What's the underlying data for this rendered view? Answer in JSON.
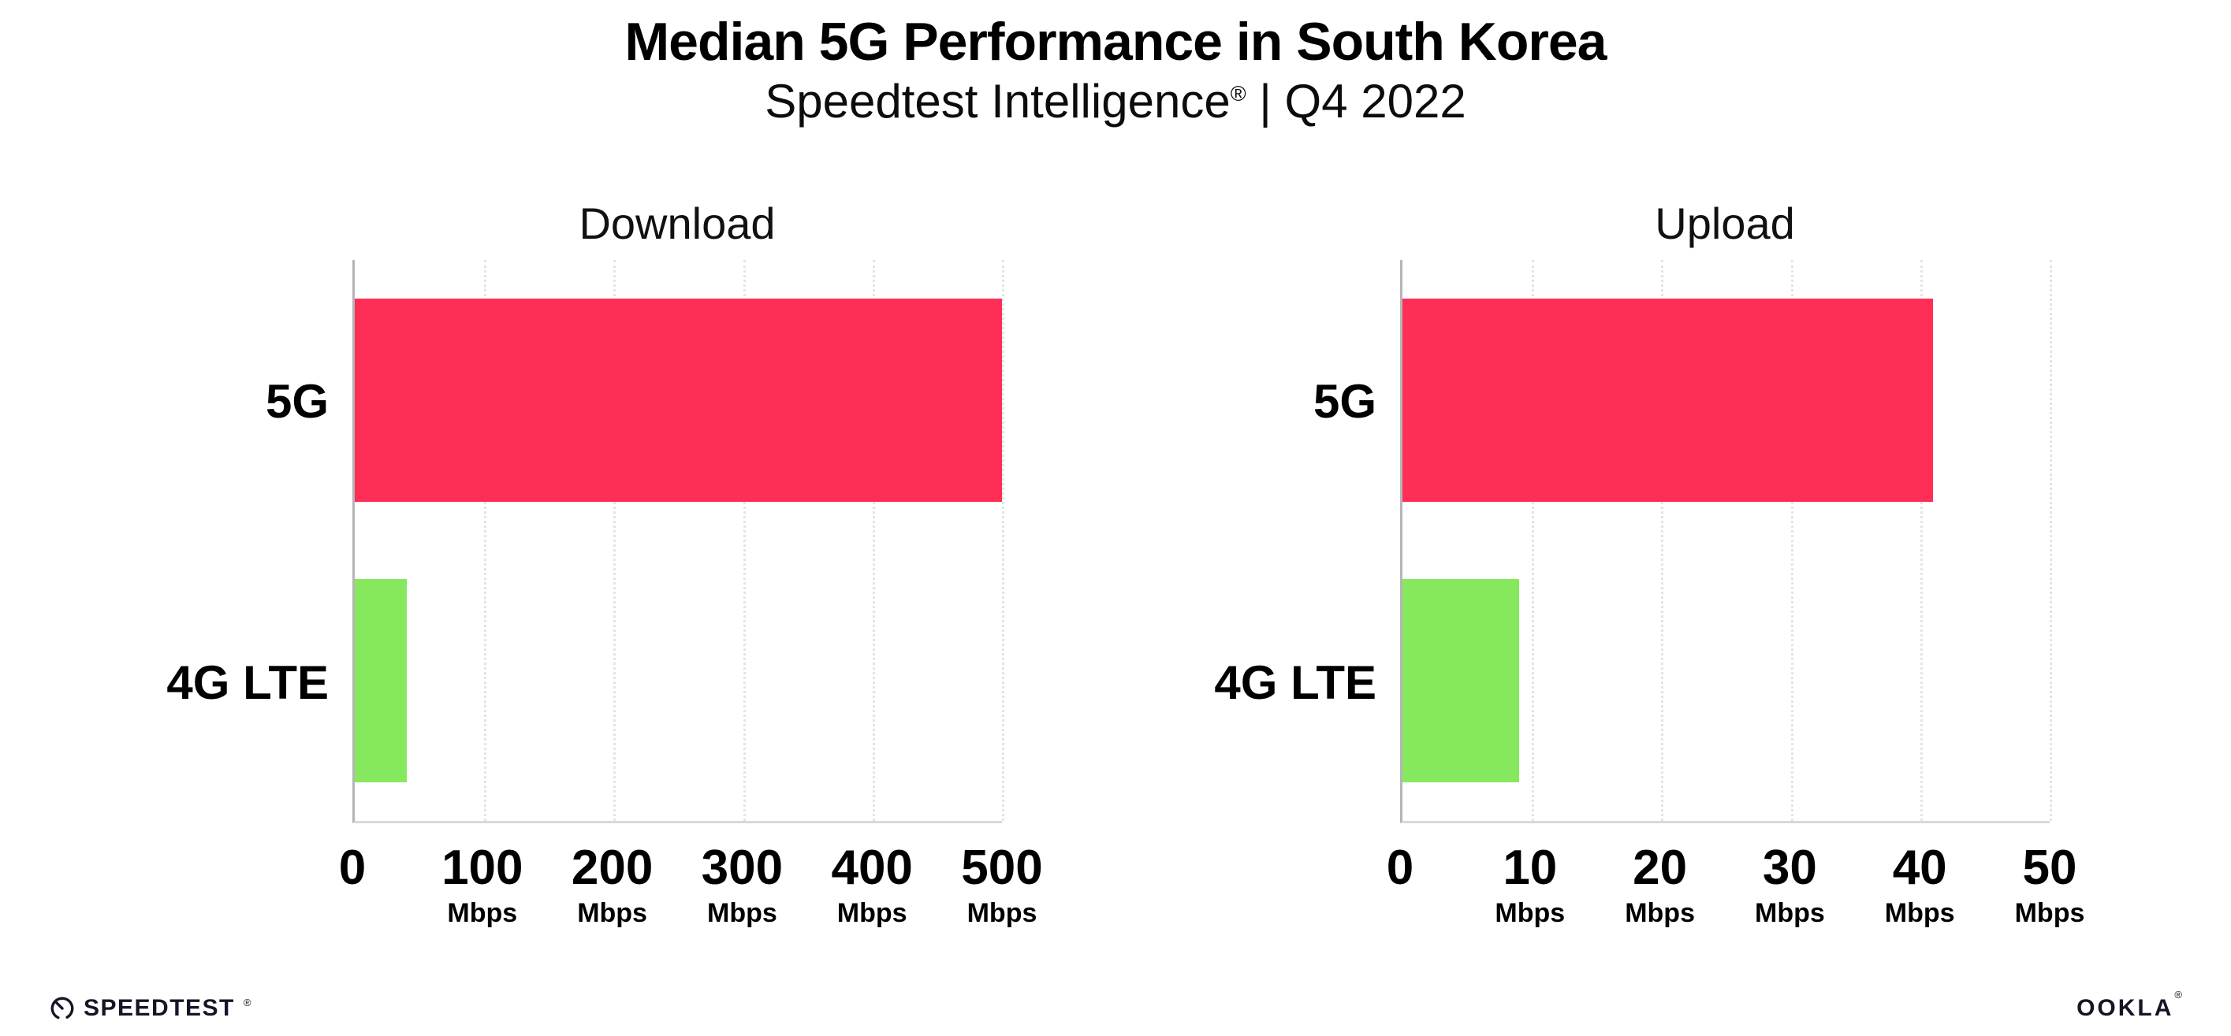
{
  "header": {
    "title": "Median 5G Performance in South Korea",
    "subtitle_brand": "Speedtest Intelligence",
    "subtitle_mark": "®",
    "subtitle_rest": "| Q4 2022"
  },
  "chart_data": [
    {
      "type": "bar",
      "orientation": "horizontal",
      "title": "Download",
      "categories": [
        "5G",
        "4G LTE"
      ],
      "values": [
        500,
        40
      ],
      "unit": "Mbps",
      "xlabel": "",
      "ylabel": "",
      "xlim": [
        0,
        500
      ],
      "xticks": [
        0,
        100,
        200,
        300,
        400,
        500
      ],
      "bar_colors": [
        "#FF2E56",
        "#85E85D"
      ],
      "grid": "dotted-vertical",
      "legend": "none"
    },
    {
      "type": "bar",
      "orientation": "horizontal",
      "title": "Upload",
      "categories": [
        "5G",
        "4G LTE"
      ],
      "values": [
        41,
        9
      ],
      "unit": "Mbps",
      "xlabel": "",
      "ylabel": "",
      "xlim": [
        0,
        50
      ],
      "xticks": [
        0,
        10,
        20,
        30,
        40,
        50
      ],
      "bar_colors": [
        "#FF2E56",
        "#85E85D"
      ],
      "grid": "dotted-vertical",
      "legend": "none"
    }
  ],
  "footer": {
    "speedtest_label": "SPEEDTEST",
    "speedtest_mark": "®",
    "ookla_label": "OOKLA",
    "ookla_mark": "®"
  },
  "colors": {
    "bar_5g": "#FF2E56",
    "bar_4g_lte": "#85E85D",
    "axis_line": "#b5b5b5",
    "baseline": "#d8d8d8",
    "gridline": "#e4e4e4",
    "text": "#000000",
    "logo": "#141526"
  }
}
